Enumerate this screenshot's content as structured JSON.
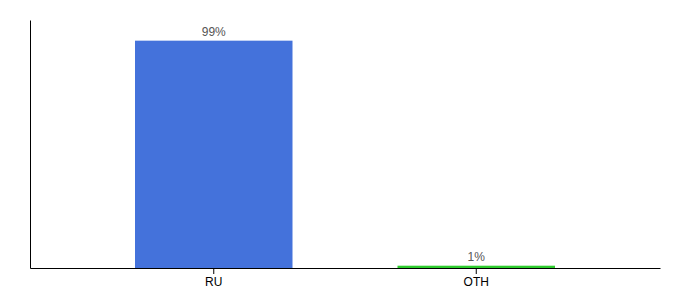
{
  "chart_data": {
    "type": "bar",
    "categories": [
      "RU",
      "OTH"
    ],
    "values": [
      99,
      1
    ],
    "value_labels": [
      "99%",
      "1%"
    ],
    "data_labels": true,
    "colors": [
      "#4472db",
      "#2ecc2e"
    ],
    "ylim": [
      0,
      108
    ],
    "tick_labels": "x",
    "grid": false
  }
}
